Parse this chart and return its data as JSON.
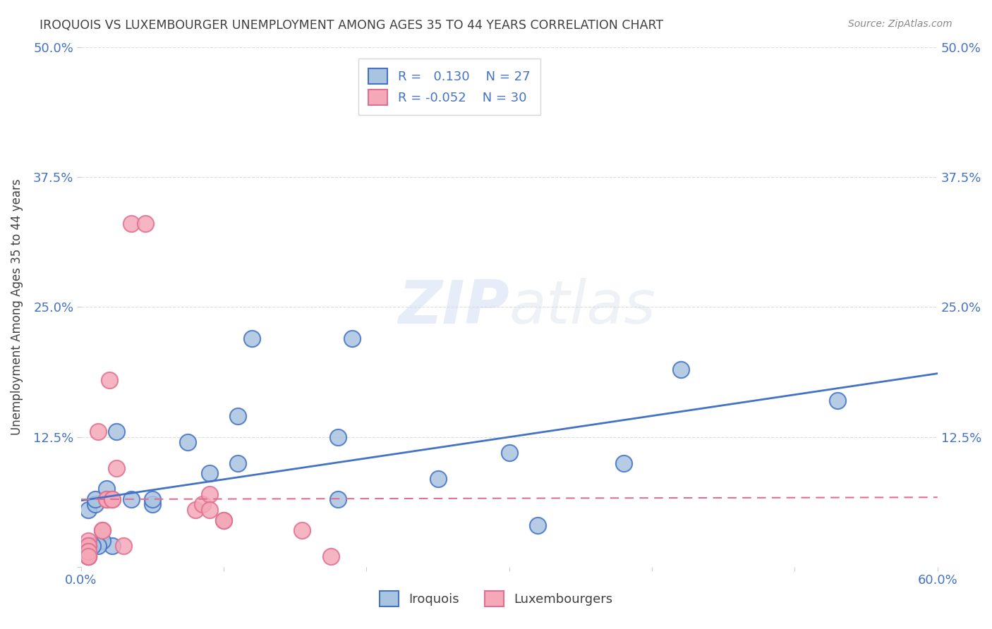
{
  "title": "IROQUOIS VS LUXEMBOURGER UNEMPLOYMENT AMONG AGES 35 TO 44 YEARS CORRELATION CHART",
  "source": "Source: ZipAtlas.com",
  "ylabel": "Unemployment Among Ages 35 to 44 years",
  "xlim": [
    0.0,
    0.6
  ],
  "ylim": [
    0.0,
    0.5
  ],
  "xticks": [
    0.0,
    0.1,
    0.2,
    0.3,
    0.4,
    0.5,
    0.6
  ],
  "xticklabels": [
    "0.0%",
    "",
    "",
    "",
    "",
    "",
    "60.0%"
  ],
  "yticks": [
    0.0,
    0.125,
    0.25,
    0.375,
    0.5
  ],
  "yticklabels": [
    "",
    "12.5%",
    "25.0%",
    "37.5%",
    "50.0%"
  ],
  "legend_labels": [
    "Iroquois",
    "Luxembourgers"
  ],
  "iroquois_R": "0.130",
  "iroquois_N": "27",
  "luxembourger_R": "-0.052",
  "luxembourger_N": "30",
  "iroquois_color": "#a8c4e0",
  "luxembourger_color": "#f4a8b8",
  "iroquois_line_color": "#4472c4",
  "luxembourger_edge_color": "#e07090",
  "luxembourger_line_color": "#e07090",
  "watermark_zip": "ZIP",
  "watermark_atlas": "atlas",
  "background_color": "#ffffff",
  "grid_color": "#dddddd",
  "title_color": "#404040",
  "axis_label_color": "#404040",
  "tick_label_color": "#4472c4",
  "iroquois_x": [
    0.022,
    0.015,
    0.012,
    0.008,
    0.005,
    0.005,
    0.01,
    0.01,
    0.018,
    0.025,
    0.035,
    0.05,
    0.05,
    0.075,
    0.09,
    0.11,
    0.11,
    0.12,
    0.18,
    0.18,
    0.19,
    0.25,
    0.3,
    0.32,
    0.38,
    0.42,
    0.53
  ],
  "iroquois_y": [
    0.02,
    0.025,
    0.02,
    0.02,
    0.055,
    0.01,
    0.06,
    0.065,
    0.075,
    0.13,
    0.065,
    0.06,
    0.065,
    0.12,
    0.09,
    0.1,
    0.145,
    0.22,
    0.125,
    0.065,
    0.22,
    0.085,
    0.11,
    0.04,
    0.1,
    0.19,
    0.16
  ],
  "luxembourger_x": [
    0.005,
    0.005,
    0.005,
    0.005,
    0.005,
    0.005,
    0.005,
    0.005,
    0.005,
    0.005,
    0.012,
    0.015,
    0.015,
    0.018,
    0.018,
    0.02,
    0.022,
    0.022,
    0.025,
    0.03,
    0.035,
    0.045,
    0.08,
    0.085,
    0.09,
    0.09,
    0.1,
    0.1,
    0.155,
    0.175
  ],
  "luxembourger_y": [
    0.02,
    0.02,
    0.025,
    0.02,
    0.02,
    0.01,
    0.01,
    0.015,
    0.015,
    0.01,
    0.13,
    0.035,
    0.035,
    0.065,
    0.065,
    0.18,
    0.065,
    0.065,
    0.095,
    0.02,
    0.33,
    0.33,
    0.055,
    0.06,
    0.07,
    0.055,
    0.045,
    0.045,
    0.035,
    0.01
  ]
}
